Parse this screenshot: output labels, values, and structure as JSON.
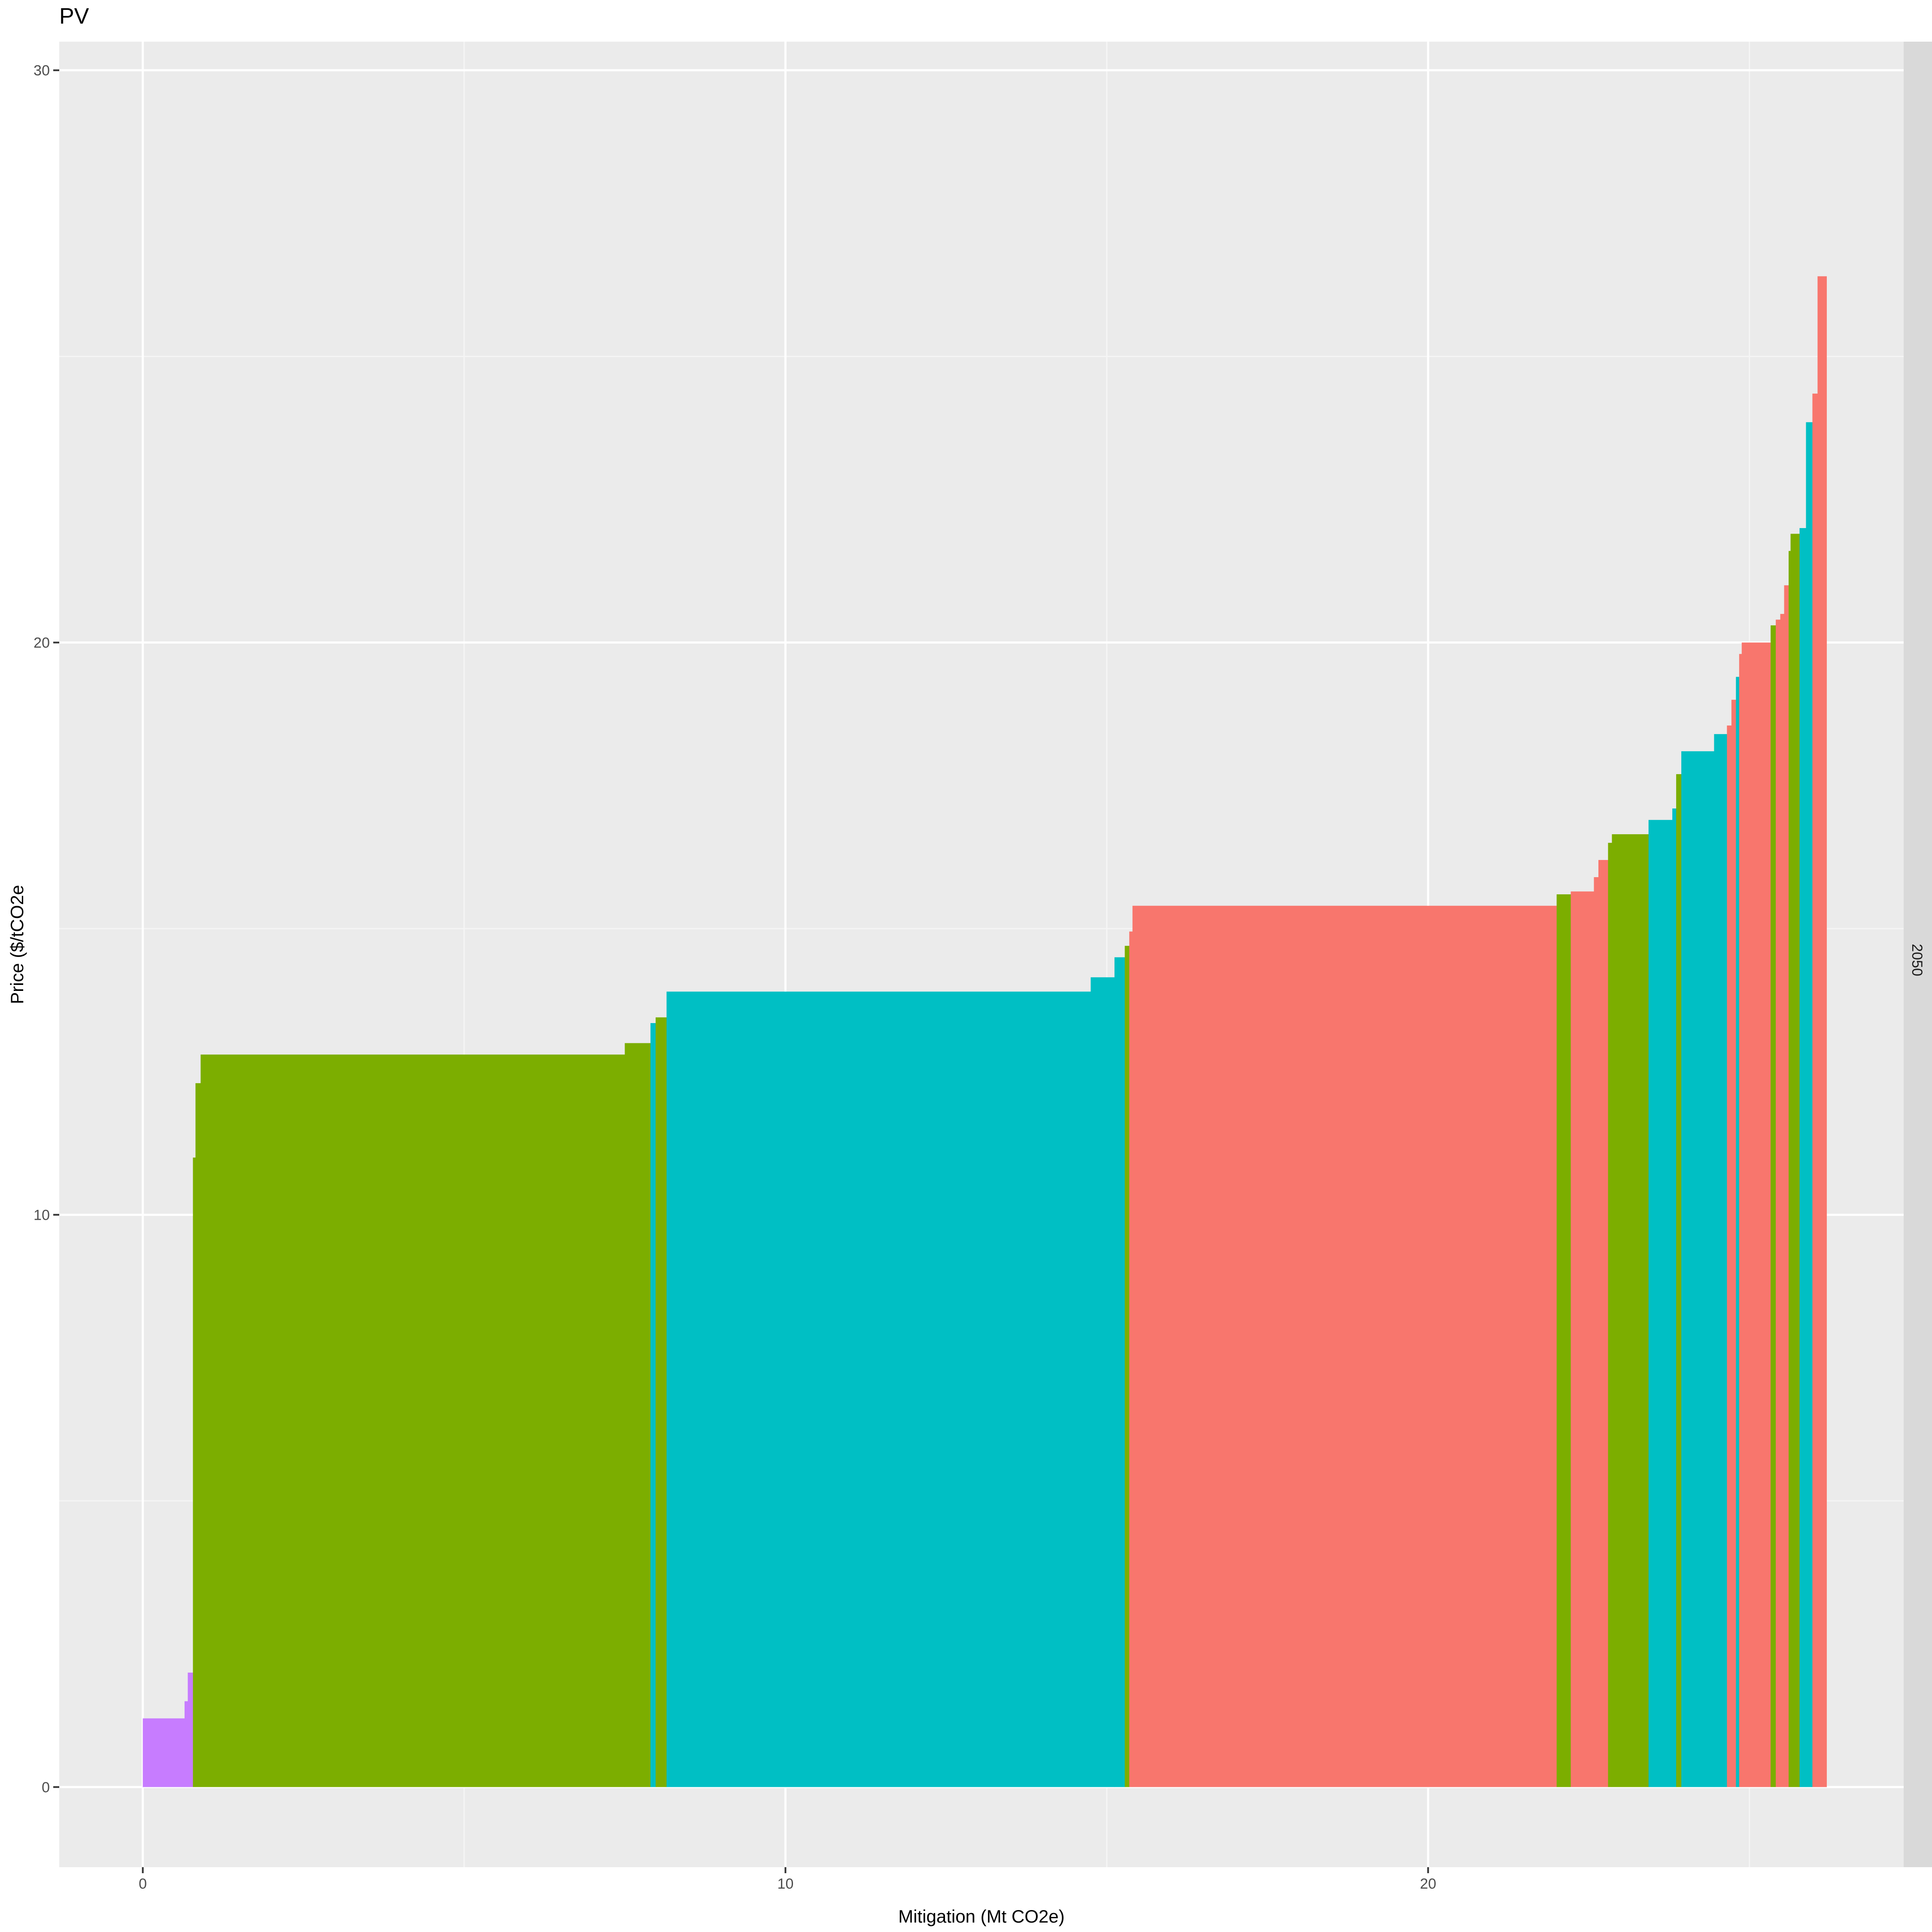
{
  "chart_data": {
    "type": "bar",
    "title": "PV",
    "xlabel": "Mitigation (Mt CO2e)",
    "ylabel": "Price ($/tCO2e",
    "facet_label": "2050",
    "xlim": [
      -1.3,
      27.4
    ],
    "ylim": [
      -1.4,
      30.5
    ],
    "x_ticks": [
      0,
      10,
      20
    ],
    "y_ticks": [
      0,
      10,
      20,
      30
    ],
    "x_minor": [
      5,
      15,
      25
    ],
    "y_minor": [
      5,
      15,
      25
    ],
    "grid": true,
    "legend": "none",
    "colors": {
      "purple": "#c77cff",
      "green": "#7cae00",
      "cyan": "#00bfc4",
      "red": "#f8766d"
    },
    "segments": [
      {
        "x0": 0.0,
        "x1": 0.65,
        "y": 1.2,
        "color": "purple"
      },
      {
        "x0": 0.65,
        "x1": 0.7,
        "y": 1.5,
        "color": "purple"
      },
      {
        "x0": 0.7,
        "x1": 0.78,
        "y": 2.0,
        "color": "purple"
      },
      {
        "x0": 0.78,
        "x1": 0.82,
        "y": 11.0,
        "color": "green"
      },
      {
        "x0": 0.82,
        "x1": 0.9,
        "y": 12.3,
        "color": "green"
      },
      {
        "x0": 0.9,
        "x1": 7.5,
        "y": 12.8,
        "color": "green"
      },
      {
        "x0": 7.5,
        "x1": 7.9,
        "y": 13.0,
        "color": "green"
      },
      {
        "x0": 7.9,
        "x1": 7.98,
        "y": 13.35,
        "color": "cyan"
      },
      {
        "x0": 7.98,
        "x1": 8.15,
        "y": 13.45,
        "color": "green"
      },
      {
        "x0": 8.15,
        "x1": 14.75,
        "y": 13.9,
        "color": "cyan"
      },
      {
        "x0": 14.75,
        "x1": 15.12,
        "y": 14.15,
        "color": "cyan"
      },
      {
        "x0": 15.12,
        "x1": 15.28,
        "y": 14.5,
        "color": "cyan"
      },
      {
        "x0": 15.28,
        "x1": 15.35,
        "y": 14.7,
        "color": "green"
      },
      {
        "x0": 15.35,
        "x1": 15.4,
        "y": 14.95,
        "color": "red"
      },
      {
        "x0": 15.4,
        "x1": 22.0,
        "y": 15.4,
        "color": "red"
      },
      {
        "x0": 22.0,
        "x1": 22.22,
        "y": 15.6,
        "color": "green"
      },
      {
        "x0": 22.22,
        "x1": 22.58,
        "y": 15.65,
        "color": "red"
      },
      {
        "x0": 22.58,
        "x1": 22.65,
        "y": 15.9,
        "color": "red"
      },
      {
        "x0": 22.65,
        "x1": 22.8,
        "y": 16.2,
        "color": "red"
      },
      {
        "x0": 22.8,
        "x1": 22.86,
        "y": 16.5,
        "color": "green"
      },
      {
        "x0": 22.86,
        "x1": 23.43,
        "y": 16.65,
        "color": "green"
      },
      {
        "x0": 23.43,
        "x1": 23.8,
        "y": 16.9,
        "color": "cyan"
      },
      {
        "x0": 23.8,
        "x1": 23.86,
        "y": 17.1,
        "color": "cyan"
      },
      {
        "x0": 23.86,
        "x1": 23.94,
        "y": 17.7,
        "color": "green"
      },
      {
        "x0": 23.94,
        "x1": 24.45,
        "y": 18.1,
        "color": "cyan"
      },
      {
        "x0": 24.45,
        "x1": 24.65,
        "y": 18.4,
        "color": "cyan"
      },
      {
        "x0": 24.65,
        "x1": 24.72,
        "y": 18.55,
        "color": "red"
      },
      {
        "x0": 24.72,
        "x1": 24.79,
        "y": 19.0,
        "color": "red"
      },
      {
        "x0": 24.79,
        "x1": 24.84,
        "y": 19.4,
        "color": "cyan"
      },
      {
        "x0": 24.84,
        "x1": 24.88,
        "y": 19.8,
        "color": "red"
      },
      {
        "x0": 24.88,
        "x1": 25.33,
        "y": 20.0,
        "color": "red"
      },
      {
        "x0": 25.33,
        "x1": 25.41,
        "y": 20.3,
        "color": "green"
      },
      {
        "x0": 25.41,
        "x1": 25.48,
        "y": 20.4,
        "color": "red"
      },
      {
        "x0": 25.48,
        "x1": 25.54,
        "y": 20.5,
        "color": "red"
      },
      {
        "x0": 25.54,
        "x1": 25.61,
        "y": 21.0,
        "color": "red"
      },
      {
        "x0": 25.61,
        "x1": 25.64,
        "y": 21.6,
        "color": "green"
      },
      {
        "x0": 25.64,
        "x1": 25.78,
        "y": 21.9,
        "color": "green"
      },
      {
        "x0": 25.78,
        "x1": 25.88,
        "y": 22.0,
        "color": "cyan"
      },
      {
        "x0": 25.88,
        "x1": 25.98,
        "y": 23.85,
        "color": "cyan"
      },
      {
        "x0": 25.98,
        "x1": 26.06,
        "y": 24.35,
        "color": "red"
      },
      {
        "x0": 26.06,
        "x1": 26.2,
        "y": 26.4,
        "color": "red"
      }
    ]
  }
}
